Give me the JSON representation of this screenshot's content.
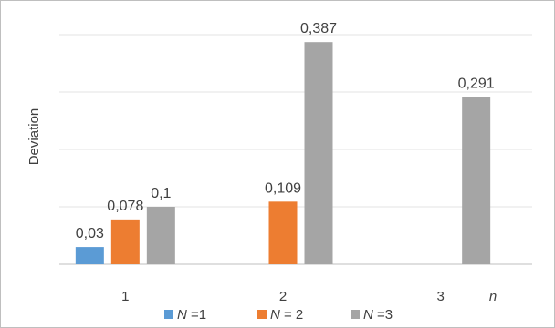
{
  "chart_data": {
    "type": "bar",
    "categories": [
      "1",
      "2",
      "3"
    ],
    "x_axis_suffix": "n",
    "ylabel": "Deviation",
    "ylim": [
      0,
      0.4
    ],
    "grid": true,
    "legend_position": "bottom",
    "series": [
      {
        "name": "N",
        "legend_suffix": "=1",
        "color": "#5b9bd5",
        "values": [
          0.03,
          null,
          null
        ],
        "labels": [
          "0,03",
          "",
          ""
        ]
      },
      {
        "name": "N",
        "legend_suffix": "= 2",
        "color": "#ed7d31",
        "values": [
          0.078,
          0.109,
          null
        ],
        "labels": [
          "0,078",
          "0,109",
          ""
        ]
      },
      {
        "name": "N",
        "legend_suffix": "=3",
        "color": "#a5a5a5",
        "values": [
          0.1,
          0.387,
          0.291
        ],
        "labels": [
          "0,1",
          "0,387",
          "0,291"
        ]
      }
    ]
  }
}
